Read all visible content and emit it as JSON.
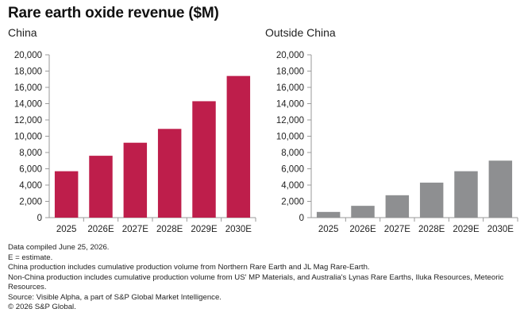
{
  "title": "Rare earth oxide revenue ($M)",
  "colors": {
    "china": "#be1e4b",
    "outside": "#8e8f91",
    "axis": "#999999",
    "text": "#222222"
  },
  "chart_data": [
    {
      "type": "bar",
      "title": "China",
      "categories": [
        "2025",
        "2026E",
        "2027E",
        "2028E",
        "2029E",
        "2030E"
      ],
      "values": [
        5700,
        7600,
        9200,
        10900,
        14300,
        17400
      ],
      "ylim": [
        0,
        20000
      ],
      "yticks": [
        "0",
        "2,000",
        "4,000",
        "6,000",
        "8,000",
        "10,000",
        "12,000",
        "14,000",
        "16,000",
        "18,000",
        "20,000"
      ],
      "grid": false
    },
    {
      "type": "bar",
      "title": "Outside China",
      "categories": [
        "2025",
        "2026E",
        "2027E",
        "2028E",
        "2029E",
        "2030E"
      ],
      "values": [
        700,
        1450,
        2750,
        4300,
        5700,
        7000
      ],
      "ylim": [
        0,
        20000
      ],
      "yticks": [
        "0",
        "2,000",
        "4,000",
        "6,000",
        "8,000",
        "10,000",
        "12,000",
        "14,000",
        "16,000",
        "18,000",
        "20,000"
      ],
      "grid": false
    }
  ],
  "notes": [
    "Data compiled June 25, 2026.",
    "E = estimate.",
    "China production includes cumulative production volume from Northern Rare Earth and JL Mag Rare-Earth.",
    "Non-China production includes cumulative production volume from US' MP Materials, and Australia's Lynas Rare Earths, Iluka Resources, Meteoric Resources.",
    "Source: Visible Alpha, a part of S&P Global Market Intelligence.",
    "© 2026 S&P Global."
  ]
}
